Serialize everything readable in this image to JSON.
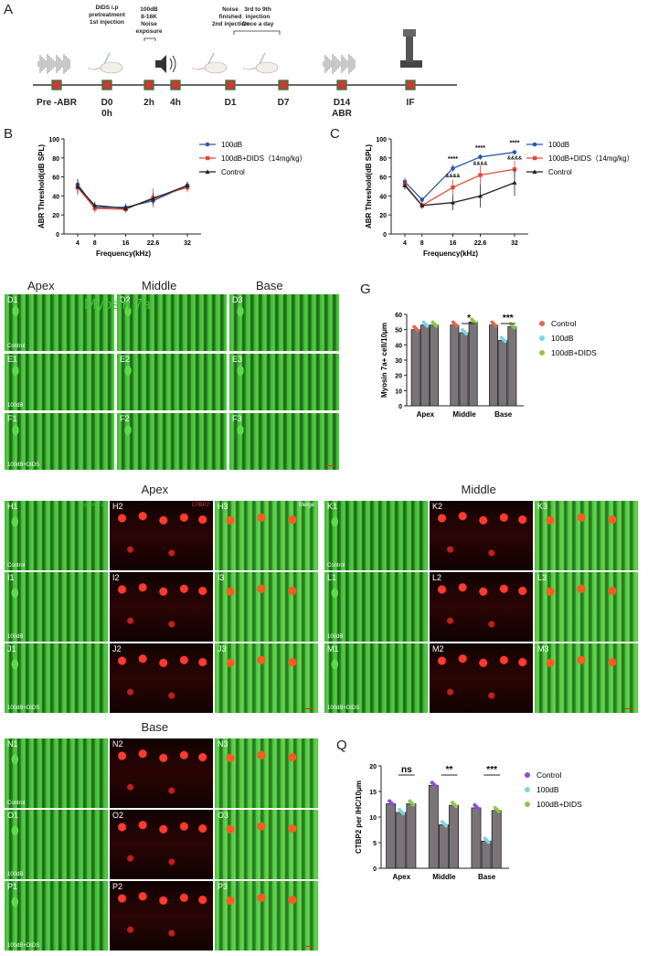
{
  "panel_labels": {
    "A": "A",
    "B": "B",
    "C": "C",
    "G": "G",
    "Q": "Q"
  },
  "timeline": {
    "events": [
      {
        "label": "Pre -ABR",
        "icon": "sound-wave-icon"
      },
      {
        "label": "D0\n0h",
        "top": "DIDS i.p\npretreatment\n1st injection",
        "icon": "mouse-syringe-icon"
      },
      {
        "label": "2h",
        "top": "100dB\n8-16K\nNoise\nexposure",
        "icon": "speaker-icon"
      },
      {
        "label": "4h"
      },
      {
        "label": "D1",
        "top": "Noise\nfinished\n2nd injection",
        "icon": "mouse-syringe-icon"
      },
      {
        "label": "D7",
        "top": "3rd to 9th\ninjection\nOnce a day",
        "icon": "mouse-syringe-icon"
      },
      {
        "label": "D14\nABR",
        "icon": "sound-wave-icon"
      },
      {
        "label": "IF",
        "icon": "microscope-icon"
      }
    ]
  },
  "chart_data": [
    {
      "id": "B",
      "type": "line",
      "xlabel": "Frequency(kHz)",
      "ylabel": "ABR Threshold(dB SPL)",
      "x": [
        "4",
        "8",
        "16",
        "22.6",
        "32"
      ],
      "ylim": [
        0,
        100
      ],
      "yticks": [
        "0",
        "20",
        "40",
        "60",
        "80",
        "100"
      ],
      "series": [
        {
          "name": "100dB",
          "color": "#2a57b0",
          "marker": "circle",
          "values": [
            52,
            28,
            28,
            35,
            51
          ],
          "err": [
            6,
            5,
            4,
            4,
            4
          ]
        },
        {
          "name": "100dB+DIDS（14mg/kg）",
          "color": "#e04a3a",
          "marker": "square",
          "values": [
            49,
            27,
            26,
            38,
            49
          ],
          "err": [
            8,
            4,
            4,
            10,
            5
          ]
        },
        {
          "name": "Control",
          "color": "#222222",
          "marker": "triangle",
          "values": [
            50,
            30,
            27,
            37,
            51
          ],
          "err": [
            7,
            4,
            3,
            6,
            4
          ]
        }
      ]
    },
    {
      "id": "C",
      "type": "line",
      "xlabel": "Frequency(kHz)",
      "ylabel": "ABR Threshold(dB SPL)",
      "x": [
        "4",
        "8",
        "16",
        "22.6",
        "32"
      ],
      "ylim": [
        0,
        100
      ],
      "yticks": [
        "0",
        "20",
        "40",
        "60",
        "80",
        "100"
      ],
      "series": [
        {
          "name": "100dB",
          "color": "#2a57b0",
          "marker": "circle",
          "values": [
            55,
            36,
            69,
            81,
            86
          ],
          "err": [
            4,
            3,
            4,
            3,
            2
          ]
        },
        {
          "name": "100dB+DIDS（14mg/kg）",
          "color": "#e04a3a",
          "marker": "square",
          "values": [
            52,
            30,
            49,
            62,
            68
          ],
          "err": [
            5,
            4,
            8,
            10,
            9
          ]
        },
        {
          "name": "Control",
          "color": "#222222",
          "marker": "triangle",
          "values": [
            51,
            30,
            33,
            40,
            54
          ],
          "err": [
            4,
            3,
            8,
            12,
            14
          ]
        }
      ],
      "annotations": [
        {
          "x": "16",
          "top": "****",
          "bottom": "&&&&"
        },
        {
          "x": "22.6",
          "top": "****",
          "bottom": "&&&&"
        },
        {
          "x": "32",
          "top": "****",
          "bottom": "&&&&"
        }
      ]
    },
    {
      "id": "G",
      "type": "bar",
      "ylabel": "Myosin 7a+ cell/10μm",
      "categories": [
        "Apex",
        "Middle",
        "Base"
      ],
      "ylim": [
        0,
        60
      ],
      "yticks": [
        "0",
        "10",
        "20",
        "30",
        "40",
        "50",
        "60"
      ],
      "series": [
        {
          "name": "Control",
          "color": "#e8654a",
          "values": [
            50,
            53,
            53
          ]
        },
        {
          "name": "100dB",
          "color": "#7fd3e0",
          "values": [
            53,
            48,
            43
          ]
        },
        {
          "name": "100dB+DIDS",
          "color": "#8cc84b",
          "values": [
            53,
            55,
            52
          ]
        }
      ],
      "significance": [
        {
          "category": "Middle",
          "label": "*"
        },
        {
          "category": "Base",
          "label": "***"
        }
      ]
    },
    {
      "id": "Q",
      "type": "bar",
      "ylabel": "CTBP2 per IHC/10μm",
      "categories": [
        "Apex",
        "Middle",
        "Base"
      ],
      "ylim": [
        0,
        20
      ],
      "yticks": [
        "0",
        "5",
        "10",
        "15",
        "20"
      ],
      "series": [
        {
          "name": "Control",
          "color": "#8e4bd6",
          "values": [
            12.6,
            16.2,
            11.8
          ]
        },
        {
          "name": "100dB",
          "color": "#7fd3e0",
          "values": [
            10.9,
            8.5,
            5.3
          ]
        },
        {
          "name": "100dB+DIDS",
          "color": "#8cc84b",
          "values": [
            12.6,
            12.3,
            11.3
          ]
        }
      ],
      "significance": [
        {
          "category": "Apex",
          "label": "ns"
        },
        {
          "category": "Middle",
          "label": "**"
        },
        {
          "category": "Base",
          "label": "***"
        }
      ]
    }
  ],
  "panelD": {
    "col_titles": [
      "Apex",
      "Middle",
      "Base"
    ],
    "rows": [
      {
        "tiles": [
          "D1",
          "D2",
          "D3"
        ],
        "group": "Control"
      },
      {
        "tiles": [
          "E1",
          "E2",
          "E3"
        ],
        "group": "100dB"
      },
      {
        "tiles": [
          "F1",
          "F2",
          "F3"
        ],
        "group": "100dB+DIDS"
      }
    ],
    "stain": "Myosin 7a"
  },
  "panelH": {
    "title": "Apex",
    "rows": [
      {
        "tiles": [
          "H1",
          "H2",
          "H3"
        ],
        "group": "Control"
      },
      {
        "tiles": [
          "I1",
          "I2",
          "I3"
        ],
        "group": "100dB"
      },
      {
        "tiles": [
          "J1",
          "J2",
          "J3"
        ],
        "group": "100dB+DIDS"
      }
    ],
    "stains": [
      "Myosin 7a",
      "CTBP2",
      "Merge"
    ]
  },
  "panelK": {
    "title": "Middle",
    "rows": [
      {
        "tiles": [
          "K1",
          "K2",
          "K3"
        ],
        "group": "Control"
      },
      {
        "tiles": [
          "L1",
          "L2",
          "L3"
        ],
        "group": "100dB"
      },
      {
        "tiles": [
          "M1",
          "M2",
          "M3"
        ],
        "group": "100dB+DIDS"
      }
    ]
  },
  "panelN": {
    "title": "Base",
    "rows": [
      {
        "tiles": [
          "N1",
          "N2",
          "N3"
        ],
        "group": "Control"
      },
      {
        "tiles": [
          "O1",
          "O2",
          "O3"
        ],
        "group": "100dB"
      },
      {
        "tiles": [
          "P1",
          "P2",
          "P3"
        ],
        "group": "100dB+DIDS"
      }
    ]
  }
}
